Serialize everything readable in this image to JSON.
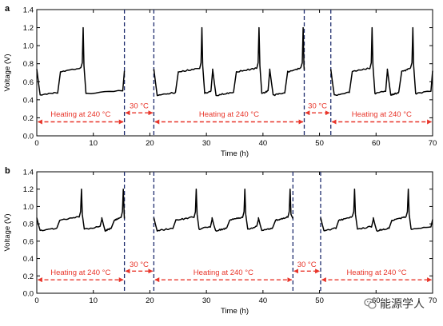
{
  "chart_data": [
    {
      "panel_label": "a",
      "type": "line",
      "xlabel": "Time (h)",
      "ylabel": "Voltage (V)",
      "xlim": [
        0,
        70
      ],
      "ylim": [
        0.0,
        1.4
      ],
      "xticks": [
        0,
        10,
        20,
        30,
        40,
        50,
        60,
        70
      ],
      "yticks": [
        0.0,
        0.2,
        0.4,
        0.6,
        0.8,
        1.0,
        1.2,
        1.4
      ],
      "xtick_labels": [
        "0",
        "10",
        "20",
        "30",
        "40",
        "50",
        "60",
        "70"
      ],
      "ytick_labels": [
        "0.0",
        "0.2",
        "0.4",
        "0.6",
        "0.8",
        "1.0",
        "1.2",
        "1.4"
      ],
      "line_color": "#000000",
      "divider_color": "#1f2d6e",
      "annotation_color": "#e8352a",
      "dividers_x": [
        15.5,
        20.7,
        47.3,
        52.0
      ],
      "segments": [
        {
          "x_start": 0,
          "x_end": 15.5,
          "cycles": [
            {
              "start": 0,
              "peak": 8.2
            }
          ],
          "low": 0.45,
          "high": 0.73
        },
        {
          "x_start": 20.7,
          "x_end": 47.3,
          "cycles": [
            {
              "start": 20.7,
              "peak": 29.2
            },
            {
              "start": 31.1,
              "peak": 39.3
            },
            {
              "start": 41.2,
              "peak": 47.1
            }
          ],
          "low": 0.45,
          "high": 0.73
        },
        {
          "x_start": 52.0,
          "x_end": 70,
          "cycles": [
            {
              "start": 52.0,
              "peak": 59.3
            },
            {
              "start": 62.0,
              "peak": 66.5
            }
          ],
          "low": 0.45,
          "high": 0.73
        }
      ],
      "annotations": [
        {
          "text": "Heating at 240 °C",
          "x_start": 0,
          "x_end": 15.5,
          "arrow_y": 0.155,
          "label_y": 0.245
        },
        {
          "text": "30 °C",
          "x_start": 15.5,
          "x_end": 20.7,
          "arrow_y": 0.255,
          "label_y": 0.335
        },
        {
          "text": "Heating at 240 °C",
          "x_start": 20.7,
          "x_end": 47.3,
          "arrow_y": 0.155,
          "label_y": 0.245
        },
        {
          "text": "30 °C",
          "x_start": 47.3,
          "x_end": 52.0,
          "arrow_y": 0.255,
          "label_y": 0.335
        },
        {
          "text": "Heating at 240 °C",
          "x_start": 52.0,
          "x_end": 70,
          "arrow_y": 0.155,
          "label_y": 0.245
        }
      ]
    },
    {
      "panel_label": "b",
      "type": "line",
      "xlabel": "Time (h)",
      "ylabel": "Voltage (V)",
      "xlim": [
        0,
        70
      ],
      "ylim": [
        0.0,
        1.4
      ],
      "xticks": [
        0,
        10,
        20,
        30,
        40,
        50,
        60,
        70
      ],
      "yticks": [
        0.0,
        0.2,
        0.4,
        0.6,
        0.8,
        1.0,
        1.2,
        1.4
      ],
      "xtick_labels": [
        "0",
        "10",
        "20",
        "30",
        "40",
        "50",
        "60",
        "70"
      ],
      "ytick_labels": [
        "0.0",
        "0.2",
        "0.4",
        "0.6",
        "0.8",
        "1.0",
        "1.2",
        "1.4"
      ],
      "line_color": "#000000",
      "divider_color": "#1f2d6e",
      "annotation_color": "#e8352a",
      "dividers_x": [
        15.5,
        20.7,
        45.3,
        50.2
      ],
      "segments": [
        {
          "x_start": 0,
          "x_end": 15.5,
          "cycles": [
            {
              "start": 0,
              "peak": 7.9
            },
            {
              "start": 11.5,
              "peak": 15.3
            }
          ],
          "low": 0.72,
          "high": 0.86
        },
        {
          "x_start": 20.7,
          "x_end": 45.3,
          "cycles": [
            {
              "start": 20.7,
              "peak": 28.2
            },
            {
              "start": 31.0,
              "peak": 36.8
            },
            {
              "start": 39.2,
              "peak": 44.8
            }
          ],
          "low": 0.72,
          "high": 0.86
        },
        {
          "x_start": 50.2,
          "x_end": 70,
          "cycles": [
            {
              "start": 50.2,
              "peak": 56.2
            },
            {
              "start": 59.5,
              "peak": 65.7
            }
          ],
          "low": 0.72,
          "high": 0.86
        }
      ],
      "annotations": [
        {
          "text": "Heating at 240 °C",
          "x_start": 0,
          "x_end": 15.5,
          "arrow_y": 0.155,
          "label_y": 0.245
        },
        {
          "text": "30 °C",
          "x_start": 15.5,
          "x_end": 20.7,
          "arrow_y": 0.255,
          "label_y": 0.335
        },
        {
          "text": "Heating at 240 °C",
          "x_start": 20.7,
          "x_end": 45.3,
          "arrow_y": 0.155,
          "label_y": 0.245
        },
        {
          "text": "30 °C",
          "x_start": 45.3,
          "x_end": 50.2,
          "arrow_y": 0.255,
          "label_y": 0.335
        },
        {
          "text": "Heating at 240 °C",
          "x_start": 50.2,
          "x_end": 70,
          "arrow_y": 0.155,
          "label_y": 0.245
        }
      ]
    }
  ],
  "watermark": {
    "text": "能源学人",
    "icon": "wechat-logo-icon"
  }
}
